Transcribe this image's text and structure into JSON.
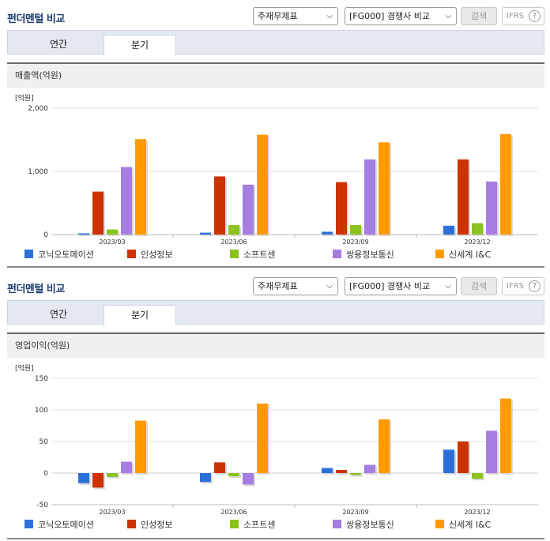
{
  "panels": [
    {
      "title": "펀더멘털 비교",
      "select_statement": "주재무제표",
      "select_compare": "[FG000] 경쟁사 비교",
      "search_label": "검색",
      "ifrs_label": "IFRS",
      "help_symbol": "?",
      "tabs": [
        {
          "label": "연간",
          "active": false
        },
        {
          "label": "분기",
          "active": true
        }
      ],
      "metric_label": "매출액(억원)"
    },
    {
      "title": "펀더멘털 비교",
      "select_statement": "주재무제표",
      "select_compare": "[FG000] 경쟁사 비교",
      "search_label": "검색",
      "ifrs_label": "IFRS",
      "help_symbol": "?",
      "tabs": [
        {
          "label": "연간",
          "active": false
        },
        {
          "label": "분기",
          "active": true
        }
      ],
      "metric_label": "영업이익(억원)"
    }
  ],
  "chart_data": [
    {
      "type": "bar",
      "ylabel": "[억원]",
      "ylim": [
        0,
        2000
      ],
      "yticks": [
        0,
        1000,
        2000
      ],
      "ytick_labels": [
        "0",
        "1,000",
        "2,000"
      ],
      "categories": [
        "2023/03",
        "2023/06",
        "2023/09",
        "2023/12"
      ],
      "grid": true,
      "legend_position": "bottom",
      "series": [
        {
          "name": "코닉오토메이션",
          "color": "#2d6fd8",
          "values": [
            20,
            30,
            45,
            140
          ]
        },
        {
          "name": "인성정보",
          "color": "#cc3300",
          "values": [
            680,
            920,
            830,
            1190
          ]
        },
        {
          "name": "소프트센",
          "color": "#8ac21e",
          "values": [
            80,
            150,
            150,
            180
          ]
        },
        {
          "name": "쌍용정보통신",
          "color": "#a67de0",
          "values": [
            1070,
            790,
            1190,
            840
          ]
        },
        {
          "name": "신세계 I&C",
          "color": "#ff9a00",
          "values": [
            1510,
            1580,
            1460,
            1590
          ]
        }
      ]
    },
    {
      "type": "bar",
      "ylabel": "[억원]",
      "ylim": [
        -50,
        150
      ],
      "yticks": [
        -50,
        0,
        50,
        100,
        150
      ],
      "ytick_labels": [
        "-50",
        "0",
        "50",
        "100",
        "150"
      ],
      "categories": [
        "2023/03",
        "2023/06",
        "2023/09",
        "2023/12"
      ],
      "grid": true,
      "legend_position": "bottom",
      "series": [
        {
          "name": "코닉오토메이션",
          "color": "#2d6fd8",
          "values": [
            -16,
            -14,
            8,
            37
          ]
        },
        {
          "name": "인성정보",
          "color": "#cc3300",
          "values": [
            -23,
            17,
            5,
            50
          ]
        },
        {
          "name": "소프트센",
          "color": "#8ac21e",
          "values": [
            -6,
            -5,
            -3,
            -9
          ]
        },
        {
          "name": "쌍용정보통신",
          "color": "#a67de0",
          "values": [
            18,
            -18,
            13,
            67
          ]
        },
        {
          "name": "신세계 I&C",
          "color": "#ff9a00",
          "values": [
            83,
            110,
            85,
            118
          ]
        }
      ]
    }
  ]
}
